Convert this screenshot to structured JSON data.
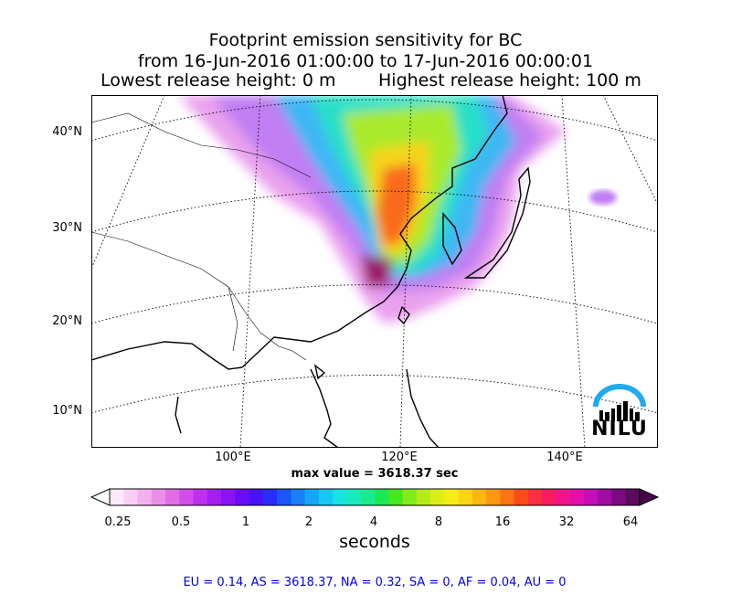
{
  "title": {
    "line1": "Footprint emission sensitivity for BC",
    "line2": "from 16-Jun-2016 01:00:00 to 17-Jun-2016 00:00:01",
    "lowest": "Lowest release height: 0 m",
    "highest": "Highest release height: 100 m"
  },
  "map": {
    "lat_labels": [
      "40°N",
      "30°N",
      "20°N",
      "10°N"
    ],
    "lon_labels": [
      "100°E",
      "120°E",
      "140°E"
    ],
    "max_value": "max value = 3618.37 sec"
  },
  "colorbar": {
    "ticks": [
      "0.25",
      "0.5",
      "1",
      "2",
      "4",
      "8",
      "16",
      "32",
      "64"
    ],
    "units": "seconds",
    "colors": [
      "#fde9fb",
      "#f9cff5",
      "#f2b0ee",
      "#ea8fe8",
      "#e06de6",
      "#d24ee8",
      "#be2fee",
      "#a51ff0",
      "#8b12f2",
      "#6a0cf4",
      "#4712f6",
      "#2a2cf8",
      "#1a56fa",
      "#1780fa",
      "#16a6f8",
      "#17c7f2",
      "#18e2e2",
      "#1ae9bd",
      "#1aea8e",
      "#1ce854",
      "#46e81e",
      "#80ea1c",
      "#b3ec1a",
      "#dded18",
      "#f7ec16",
      "#fbd514",
      "#fcb613",
      "#fd9612",
      "#fd7212",
      "#fd4b1a",
      "#fc2f3c",
      "#f91a62",
      "#f0148a",
      "#e010a9",
      "#c40eb8",
      "#9e0ca2",
      "#7a0a80",
      "#5c0a5c"
    ]
  },
  "regions": "EU = 0.14,  AS = 3618.37,  NA = 0.32,  SA = 0,  AF = 0.04,  AU = 0",
  "logo": "NILU"
}
